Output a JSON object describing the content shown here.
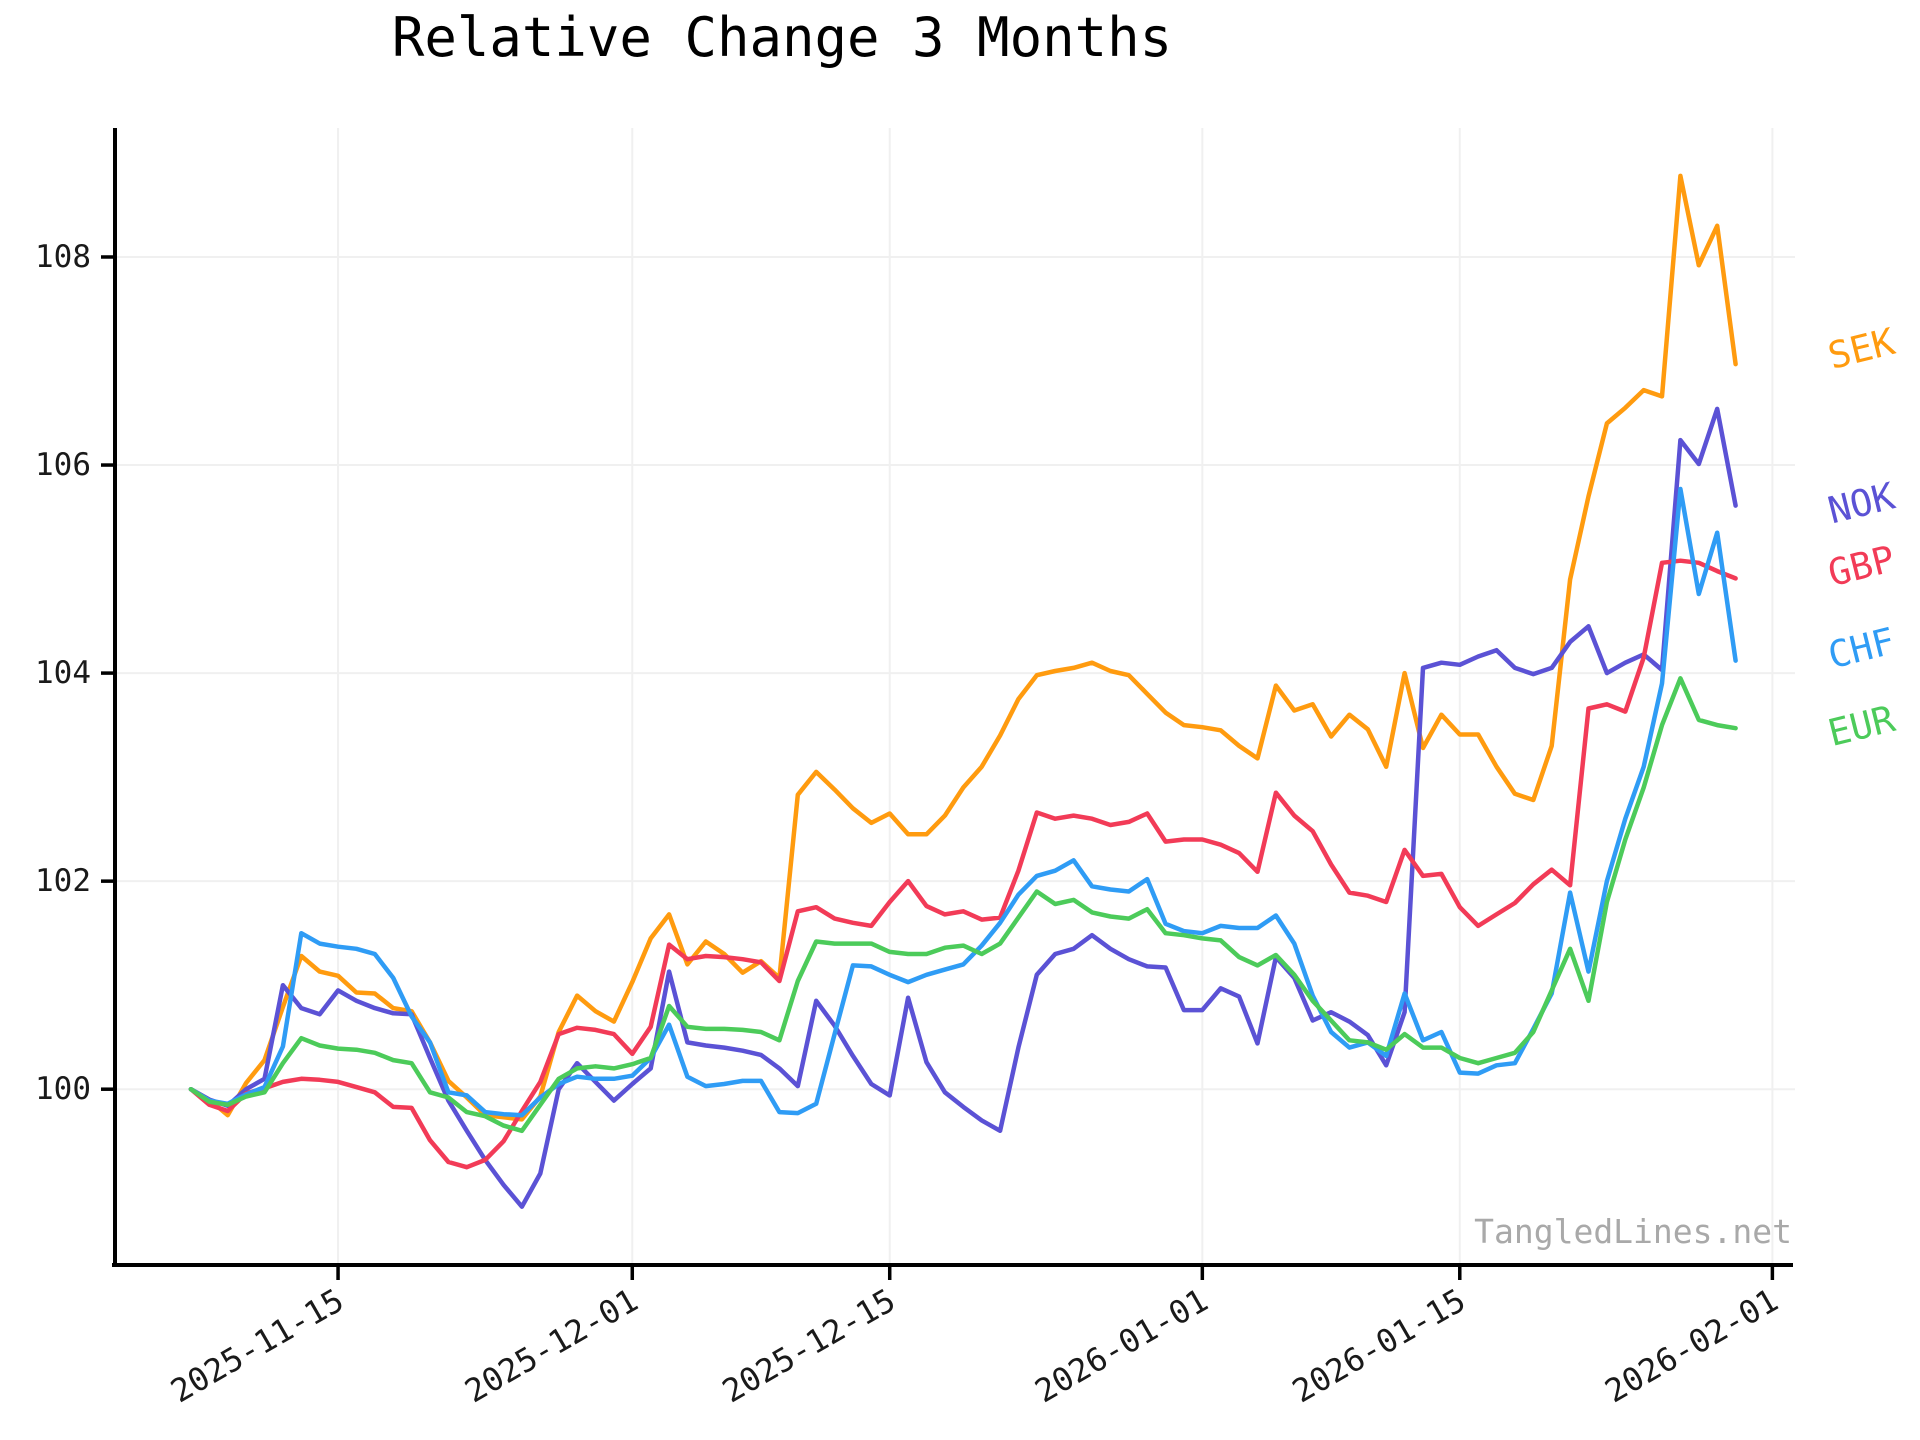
{
  "title": "Relative Change 3 Months",
  "watermark": "TangledLines.net",
  "chart_data": {
    "type": "line",
    "title": "Relative Change 3 Months",
    "xlabel": "",
    "ylabel": "",
    "grid": true,
    "legend_position": "right-of-plot",
    "y_ticks": [
      100,
      102,
      104,
      106,
      108
    ],
    "x_ticks": [
      "2025-11-15",
      "2025-12-01",
      "2025-12-15",
      "2026-01-01",
      "2026-01-15",
      "2026-02-01"
    ],
    "ylim": [
      98.31,
      109.24
    ],
    "xlim_days_from_first_tick": [
      -12.13,
      79.23
    ],
    "base_date": "2025-11-15",
    "x": [
      "2025-11-07",
      "2025-11-08",
      "2025-11-09",
      "2025-11-10",
      "2025-11-11",
      "2025-11-12",
      "2025-11-13",
      "2025-11-14",
      "2025-11-15",
      "2025-11-16",
      "2025-11-17",
      "2025-11-18",
      "2025-11-19",
      "2025-11-20",
      "2025-11-21",
      "2025-11-22",
      "2025-11-23",
      "2025-11-24",
      "2025-11-25",
      "2025-11-26",
      "2025-11-27",
      "2025-11-28",
      "2025-11-29",
      "2025-11-30",
      "2025-12-01",
      "2025-12-02",
      "2025-12-03",
      "2025-12-04",
      "2025-12-05",
      "2025-12-06",
      "2025-12-07",
      "2025-12-08",
      "2025-12-09",
      "2025-12-10",
      "2025-12-11",
      "2025-12-12",
      "2025-12-13",
      "2025-12-14",
      "2025-12-15",
      "2025-12-16",
      "2025-12-17",
      "2025-12-18",
      "2025-12-19",
      "2025-12-20",
      "2025-12-21",
      "2025-12-22",
      "2025-12-23",
      "2025-12-24",
      "2025-12-25",
      "2025-12-26",
      "2025-12-27",
      "2025-12-28",
      "2025-12-29",
      "2025-12-30",
      "2025-12-31",
      "2026-01-01",
      "2026-01-02",
      "2026-01-03",
      "2026-01-04",
      "2026-01-05",
      "2026-01-06",
      "2026-01-07",
      "2026-01-08",
      "2026-01-09",
      "2026-01-10",
      "2026-01-11",
      "2026-01-12",
      "2026-01-13",
      "2026-01-14",
      "2026-01-15",
      "2026-01-16",
      "2026-01-17",
      "2026-01-18",
      "2026-01-19",
      "2026-01-20",
      "2026-01-21",
      "2026-01-22",
      "2026-01-23",
      "2026-01-24",
      "2026-01-25",
      "2026-01-26",
      "2026-01-27",
      "2026-01-28",
      "2026-01-29",
      "2026-01-30"
    ],
    "series": [
      {
        "name": "SEK",
        "color": "#ff9b0f",
        "values": [
          100.0,
          99.9,
          99.75,
          100.06,
          100.28,
          100.79,
          101.28,
          101.13,
          101.09,
          100.93,
          100.92,
          100.78,
          100.75,
          100.45,
          100.08,
          99.92,
          99.75,
          99.73,
          99.71,
          99.93,
          100.55,
          100.9,
          100.75,
          100.65,
          101.03,
          101.45,
          101.68,
          101.2,
          101.42,
          101.3,
          101.12,
          101.23,
          101.07,
          102.83,
          103.05,
          102.88,
          102.7,
          102.56,
          102.65,
          102.45,
          102.45,
          102.63,
          102.9,
          103.1,
          103.4,
          103.75,
          103.98,
          104.02,
          104.05,
          104.1,
          104.02,
          103.98,
          103.8,
          103.62,
          103.5,
          103.48,
          103.45,
          103.3,
          103.18,
          103.88,
          103.64,
          103.7,
          103.39,
          103.6,
          103.46,
          103.1,
          104.0,
          103.28,
          103.6,
          103.41,
          103.41,
          103.1,
          102.84,
          102.78,
          103.3,
          104.9,
          105.7,
          106.4,
          106.55,
          106.72,
          106.66,
          108.78,
          107.92,
          108.3,
          106.97
        ]
      },
      {
        "name": "NOK",
        "color": "#5b52d5",
        "values": [
          100.0,
          99.9,
          99.84,
          100.0,
          100.1,
          101.0,
          100.78,
          100.72,
          100.95,
          100.85,
          100.78,
          100.73,
          100.72,
          100.3,
          99.89,
          99.6,
          99.32,
          99.08,
          98.87,
          99.19,
          100.0,
          100.25,
          100.07,
          99.89,
          100.05,
          100.2,
          101.13,
          100.45,
          100.42,
          100.4,
          100.37,
          100.33,
          100.2,
          100.03,
          100.85,
          100.61,
          100.32,
          100.05,
          99.94,
          100.88,
          100.26,
          99.97,
          99.83,
          99.7,
          99.6,
          100.4,
          101.1,
          101.3,
          101.35,
          101.48,
          101.35,
          101.25,
          101.18,
          101.17,
          100.76,
          100.76,
          100.97,
          100.89,
          100.44,
          101.27,
          101.07,
          100.66,
          100.74,
          100.65,
          100.52,
          100.23,
          100.74,
          104.05,
          104.1,
          104.08,
          104.16,
          104.22,
          104.05,
          103.99,
          104.05,
          104.3,
          104.45,
          104.0,
          104.1,
          104.18,
          104.03,
          106.24,
          106.01,
          106.54,
          105.61
        ]
      },
      {
        "name": "GBP",
        "color": "#f23b57",
        "values": [
          100.0,
          99.85,
          99.79,
          99.96,
          100.01,
          100.07,
          100.1,
          100.09,
          100.07,
          100.02,
          99.97,
          99.83,
          99.82,
          99.51,
          99.3,
          99.25,
          99.32,
          99.5,
          99.79,
          100.07,
          100.53,
          100.59,
          100.57,
          100.53,
          100.34,
          100.6,
          101.39,
          101.25,
          101.28,
          101.27,
          101.25,
          101.22,
          101.04,
          101.71,
          101.75,
          101.64,
          101.6,
          101.57,
          101.8,
          102.0,
          101.76,
          101.68,
          101.71,
          101.63,
          101.65,
          102.1,
          102.66,
          102.6,
          102.63,
          102.6,
          102.54,
          102.57,
          102.65,
          102.38,
          102.4,
          102.4,
          102.35,
          102.27,
          102.09,
          102.85,
          102.63,
          102.48,
          102.16,
          101.89,
          101.86,
          101.8,
          102.3,
          102.05,
          102.07,
          101.75,
          101.57,
          101.68,
          101.79,
          101.97,
          102.11,
          101.96,
          103.66,
          103.7,
          103.63,
          104.15,
          105.06,
          105.08,
          105.06,
          104.98,
          104.91
        ]
      },
      {
        "name": "CHF",
        "color": "#2f9cf5",
        "values": [
          100.0,
          99.89,
          99.86,
          99.95,
          100.02,
          100.41,
          101.5,
          101.4,
          101.37,
          101.35,
          101.3,
          101.07,
          100.7,
          100.45,
          99.97,
          99.94,
          99.78,
          99.76,
          99.75,
          99.92,
          100.05,
          100.12,
          100.1,
          100.1,
          100.13,
          100.3,
          100.62,
          100.12,
          100.03,
          100.05,
          100.08,
          100.08,
          99.78,
          99.77,
          99.86,
          100.53,
          101.19,
          101.18,
          101.1,
          101.03,
          101.1,
          101.15,
          101.2,
          101.38,
          101.6,
          101.87,
          102.05,
          102.1,
          102.2,
          101.95,
          101.92,
          101.9,
          102.02,
          101.59,
          101.52,
          101.5,
          101.57,
          101.55,
          101.55,
          101.67,
          101.4,
          100.9,
          100.55,
          100.4,
          100.45,
          100.32,
          100.92,
          100.47,
          100.55,
          100.16,
          100.15,
          100.23,
          100.25,
          100.58,
          100.92,
          101.89,
          101.13,
          102.0,
          102.6,
          103.1,
          103.9,
          105.77,
          104.76,
          105.35,
          104.12
        ]
      },
      {
        "name": "EUR",
        "color": "#4ccb5a",
        "values": [
          100.0,
          99.88,
          99.85,
          99.93,
          99.97,
          100.25,
          100.49,
          100.42,
          100.39,
          100.38,
          100.35,
          100.28,
          100.25,
          99.97,
          99.92,
          99.78,
          99.74,
          99.65,
          99.6,
          99.85,
          100.1,
          100.2,
          100.22,
          100.2,
          100.24,
          100.3,
          100.8,
          100.6,
          100.58,
          100.58,
          100.57,
          100.55,
          100.47,
          101.04,
          101.42,
          101.4,
          101.4,
          101.4,
          101.32,
          101.3,
          101.3,
          101.36,
          101.38,
          101.3,
          101.4,
          101.65,
          101.9,
          101.78,
          101.82,
          101.7,
          101.66,
          101.64,
          101.73,
          101.5,
          101.48,
          101.45,
          101.43,
          101.27,
          101.19,
          101.29,
          101.1,
          100.85,
          100.66,
          100.47,
          100.45,
          100.38,
          100.53,
          100.4,
          100.4,
          100.3,
          100.25,
          100.3,
          100.35,
          100.55,
          100.95,
          101.35,
          100.85,
          101.8,
          102.4,
          102.9,
          103.5,
          103.95,
          103.55,
          103.5,
          103.47
        ]
      }
    ]
  }
}
